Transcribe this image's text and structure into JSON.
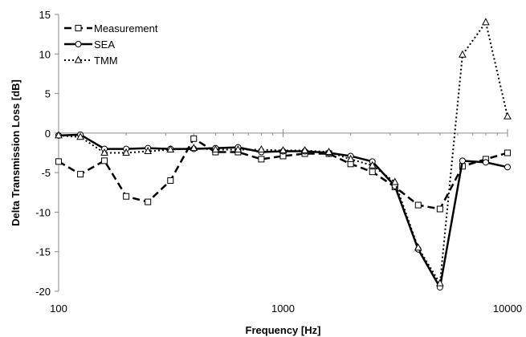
{
  "chart_data": {
    "type": "line",
    "title": "",
    "xlabel": "Frequency [Hz]",
    "ylabel": "Delta Transmission Loss [dB]",
    "x_scale": "log",
    "xlim": [
      100,
      10000
    ],
    "ylim": [
      -20,
      15
    ],
    "x_ticks": [
      100,
      1000,
      10000
    ],
    "x_tick_labels": [
      "100",
      "1000",
      "10000"
    ],
    "y_ticks": [
      15,
      10,
      5,
      0,
      -5,
      -10,
      -15,
      -20
    ],
    "y_tick_labels": [
      "15",
      "10",
      "5",
      "0",
      "-5",
      "-10",
      "-15",
      "-20"
    ],
    "grid": false,
    "legend_position": "top-left",
    "x": [
      100,
      125,
      160,
      200,
      250,
      315,
      400,
      500,
      630,
      800,
      1000,
      1250,
      1600,
      2000,
      2500,
      3150,
      4000,
      5000,
      6300,
      8000,
      10000
    ],
    "series": [
      {
        "name": "Measurement",
        "style": "dashed",
        "marker": "square",
        "color": "#000000",
        "values": [
          -3.6,
          -5.2,
          -3.5,
          -8.0,
          -8.7,
          -6.0,
          -0.7,
          -2.4,
          -2.4,
          -3.3,
          -2.9,
          -2.6,
          -2.6,
          -3.9,
          -4.9,
          -6.8,
          -9.1,
          -9.6,
          -4.2,
          -3.3,
          -2.5
        ]
      },
      {
        "name": "SEA",
        "style": "solid",
        "marker": "circle",
        "color": "#000000",
        "values": [
          -0.3,
          -0.2,
          -2.0,
          -2.0,
          -1.9,
          -2.0,
          -2.0,
          -1.9,
          -1.8,
          -2.4,
          -2.3,
          -2.3,
          -2.5,
          -2.9,
          -3.6,
          -6.7,
          -14.7,
          -19.5,
          -3.5,
          -3.7,
          -4.3
        ]
      },
      {
        "name": "TMM",
        "style": "dotted",
        "marker": "triangle",
        "color": "#000000",
        "values": [
          -0.3,
          -0.5,
          -2.5,
          -2.5,
          -2.3,
          -2.1,
          -1.9,
          -2.1,
          -2.1,
          -2.1,
          -2.2,
          -2.2,
          -2.4,
          -3.3,
          -4.1,
          -6.2,
          -14.5,
          -19.0,
          9.9,
          14.0,
          2.1
        ]
      }
    ]
  }
}
